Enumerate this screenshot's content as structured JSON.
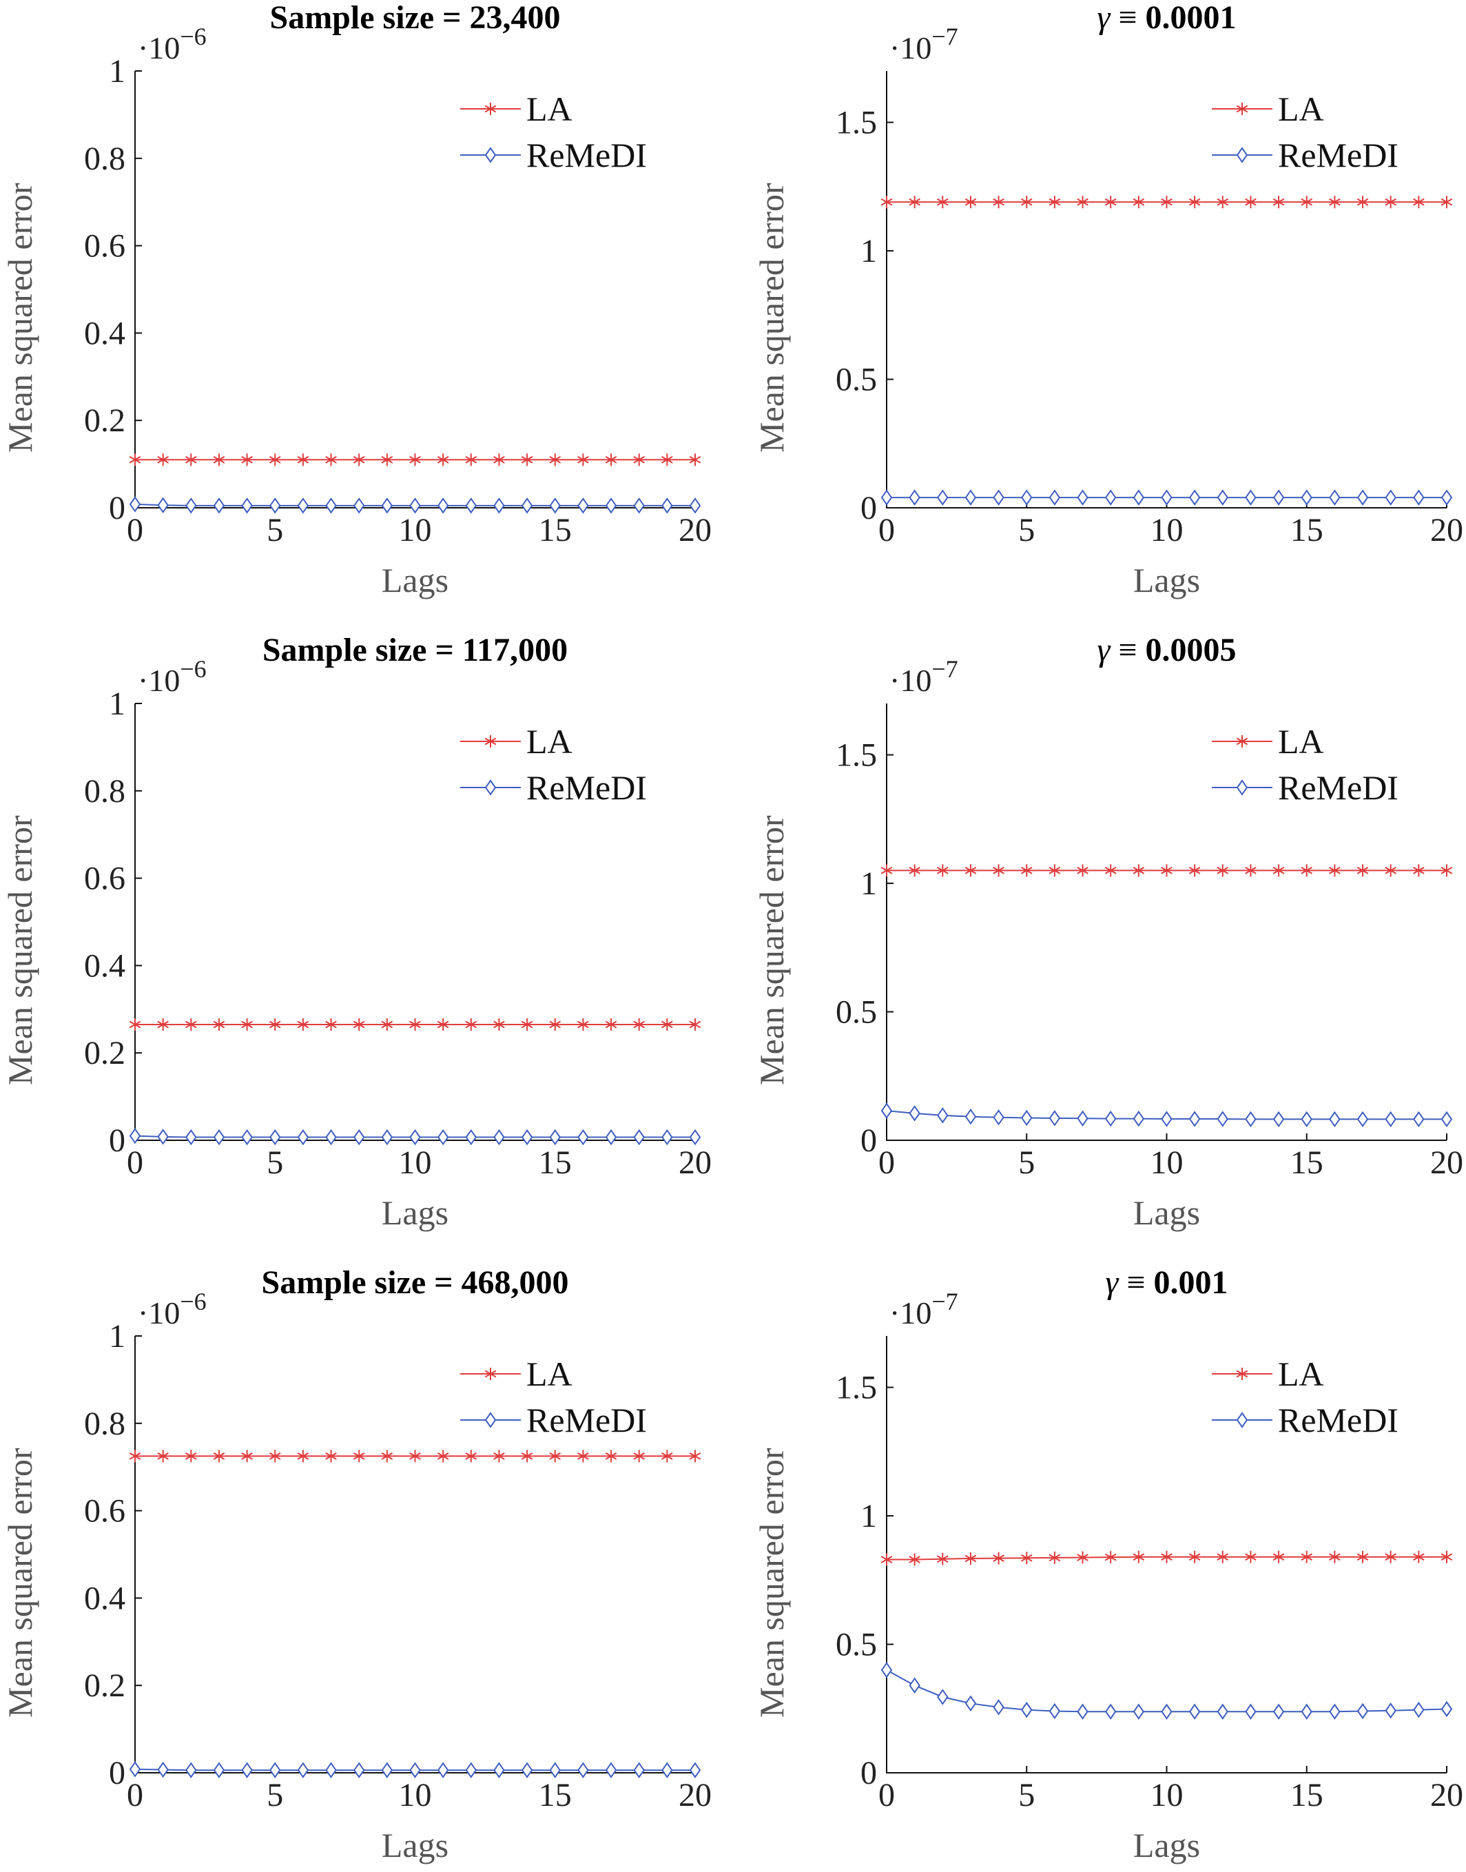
{
  "chart_data": [
    {
      "type": "line",
      "title": "Sample size = 23,400",
      "title_parts": [
        {
          "text": "Sample size = 23,400",
          "italic": false
        }
      ],
      "xlabel": "Lags",
      "ylabel": "Mean squared error",
      "scale_mult": "·10",
      "scale_exp": "−6",
      "xlim": [
        0,
        20
      ],
      "ylim": [
        0,
        1
      ],
      "xticks": [
        0,
        5,
        10,
        15,
        20
      ],
      "yticks": [
        0,
        0.2,
        0.4,
        0.6,
        0.8,
        1
      ],
      "ytick_labels": [
        "0",
        "0.2",
        "0.4",
        "0.6",
        "0.8",
        "1"
      ],
      "legend": "top-right",
      "x": [
        0,
        1,
        2,
        3,
        4,
        5,
        6,
        7,
        8,
        9,
        10,
        11,
        12,
        13,
        14,
        15,
        16,
        17,
        18,
        19,
        20
      ],
      "series": [
        {
          "name": "LA",
          "color": "#e03c3c",
          "marker": "star",
          "values": [
            0.11,
            0.11,
            0.11,
            0.11,
            0.11,
            0.11,
            0.11,
            0.11,
            0.11,
            0.11,
            0.11,
            0.11,
            0.11,
            0.11,
            0.11,
            0.11,
            0.11,
            0.11,
            0.11,
            0.11,
            0.11
          ]
        },
        {
          "name": "ReMeDI",
          "color": "#3f5fbf",
          "marker": "diamond",
          "values": [
            0.008,
            0.006,
            0.005,
            0.005,
            0.005,
            0.005,
            0.005,
            0.005,
            0.005,
            0.005,
            0.005,
            0.005,
            0.005,
            0.005,
            0.005,
            0.005,
            0.005,
            0.005,
            0.005,
            0.005,
            0.005
          ]
        }
      ]
    },
    {
      "type": "line",
      "title": "γ ≡ 0.0001",
      "title_parts": [
        {
          "text": "γ",
          "italic": true
        },
        {
          "text": " ≡ ",
          "italic": false
        },
        {
          "text": "0.0001",
          "italic": false,
          "bold": true
        }
      ],
      "xlabel": "Lags",
      "ylabel": "Mean squared error",
      "scale_mult": "·10",
      "scale_exp": "−7",
      "xlim": [
        0,
        20
      ],
      "ylim": [
        0,
        1.7
      ],
      "xticks": [
        0,
        5,
        10,
        15,
        20
      ],
      "yticks": [
        0,
        0.5,
        1,
        1.5
      ],
      "ytick_labels": [
        "0",
        "0.5",
        "1",
        "1.5"
      ],
      "legend": "top-right",
      "x": [
        0,
        1,
        2,
        3,
        4,
        5,
        6,
        7,
        8,
        9,
        10,
        11,
        12,
        13,
        14,
        15,
        16,
        17,
        18,
        19,
        20
      ],
      "series": [
        {
          "name": "LA",
          "color": "#e03c3c",
          "marker": "star",
          "values": [
            1.19,
            1.19,
            1.19,
            1.19,
            1.19,
            1.19,
            1.19,
            1.19,
            1.19,
            1.19,
            1.19,
            1.19,
            1.19,
            1.19,
            1.19,
            1.19,
            1.19,
            1.19,
            1.19,
            1.19,
            1.19
          ]
        },
        {
          "name": "ReMeDI",
          "color": "#3f5fbf",
          "marker": "diamond",
          "values": [
            0.04,
            0.04,
            0.04,
            0.04,
            0.04,
            0.04,
            0.04,
            0.04,
            0.04,
            0.04,
            0.04,
            0.04,
            0.04,
            0.04,
            0.04,
            0.04,
            0.04,
            0.04,
            0.04,
            0.04,
            0.04
          ]
        }
      ]
    },
    {
      "type": "line",
      "title": "Sample size = 117,000",
      "title_parts": [
        {
          "text": "Sample size = 117,000",
          "italic": false
        }
      ],
      "xlabel": "Lags",
      "ylabel": "Mean squared error",
      "scale_mult": "·10",
      "scale_exp": "−6",
      "xlim": [
        0,
        20
      ],
      "ylim": [
        0,
        1
      ],
      "xticks": [
        0,
        5,
        10,
        15,
        20
      ],
      "yticks": [
        0,
        0.2,
        0.4,
        0.6,
        0.8,
        1
      ],
      "ytick_labels": [
        "0",
        "0.2",
        "0.4",
        "0.6",
        "0.8",
        "1"
      ],
      "legend": "top-right",
      "x": [
        0,
        1,
        2,
        3,
        4,
        5,
        6,
        7,
        8,
        9,
        10,
        11,
        12,
        13,
        14,
        15,
        16,
        17,
        18,
        19,
        20
      ],
      "series": [
        {
          "name": "LA",
          "color": "#e03c3c",
          "marker": "star",
          "values": [
            0.265,
            0.265,
            0.265,
            0.265,
            0.265,
            0.265,
            0.265,
            0.265,
            0.265,
            0.265,
            0.265,
            0.265,
            0.265,
            0.265,
            0.265,
            0.265,
            0.265,
            0.265,
            0.265,
            0.265,
            0.265
          ]
        },
        {
          "name": "ReMeDI",
          "color": "#3f5fbf",
          "marker": "diamond",
          "values": [
            0.01,
            0.008,
            0.007,
            0.007,
            0.007,
            0.007,
            0.007,
            0.007,
            0.007,
            0.007,
            0.007,
            0.007,
            0.007,
            0.007,
            0.007,
            0.007,
            0.007,
            0.007,
            0.007,
            0.007,
            0.007
          ]
        }
      ]
    },
    {
      "type": "line",
      "title": "γ ≡ 0.0005",
      "title_parts": [
        {
          "text": "γ",
          "italic": true
        },
        {
          "text": " ≡ ",
          "italic": false
        },
        {
          "text": "0.0005",
          "italic": false,
          "bold": true
        }
      ],
      "xlabel": "Lags",
      "ylabel": "Mean squared error",
      "scale_mult": "·10",
      "scale_exp": "−7",
      "xlim": [
        0,
        20
      ],
      "ylim": [
        0,
        1.7
      ],
      "xticks": [
        0,
        5,
        10,
        15,
        20
      ],
      "yticks": [
        0,
        0.5,
        1,
        1.5
      ],
      "ytick_labels": [
        "0",
        "0.5",
        "1",
        "1.5"
      ],
      "legend": "top-right",
      "x": [
        0,
        1,
        2,
        3,
        4,
        5,
        6,
        7,
        8,
        9,
        10,
        11,
        12,
        13,
        14,
        15,
        16,
        17,
        18,
        19,
        20
      ],
      "series": [
        {
          "name": "LA",
          "color": "#e03c3c",
          "marker": "star",
          "values": [
            1.05,
            1.05,
            1.05,
            1.05,
            1.05,
            1.05,
            1.05,
            1.05,
            1.05,
            1.05,
            1.05,
            1.05,
            1.05,
            1.05,
            1.05,
            1.05,
            1.05,
            1.05,
            1.05,
            1.05,
            1.05
          ]
        },
        {
          "name": "ReMeDI",
          "color": "#3f5fbf",
          "marker": "diamond",
          "values": [
            0.115,
            0.105,
            0.097,
            0.092,
            0.089,
            0.087,
            0.086,
            0.085,
            0.084,
            0.084,
            0.083,
            0.083,
            0.083,
            0.082,
            0.082,
            0.082,
            0.082,
            0.082,
            0.082,
            0.082,
            0.082
          ]
        }
      ]
    },
    {
      "type": "line",
      "title": "Sample size = 468,000",
      "title_parts": [
        {
          "text": "Sample size = 468,000",
          "italic": false
        }
      ],
      "xlabel": "Lags",
      "ylabel": "Mean squared error",
      "scale_mult": "·10",
      "scale_exp": "−6",
      "xlim": [
        0,
        20
      ],
      "ylim": [
        0,
        1
      ],
      "xticks": [
        0,
        5,
        10,
        15,
        20
      ],
      "yticks": [
        0,
        0.2,
        0.4,
        0.6,
        0.8,
        1
      ],
      "ytick_labels": [
        "0",
        "0.2",
        "0.4",
        "0.6",
        "0.8",
        "1"
      ],
      "legend": "top-right",
      "x": [
        0,
        1,
        2,
        3,
        4,
        5,
        6,
        7,
        8,
        9,
        10,
        11,
        12,
        13,
        14,
        15,
        16,
        17,
        18,
        19,
        20
      ],
      "series": [
        {
          "name": "LA",
          "color": "#e03c3c",
          "marker": "star",
          "values": [
            0.725,
            0.725,
            0.725,
            0.725,
            0.725,
            0.725,
            0.725,
            0.725,
            0.725,
            0.725,
            0.725,
            0.725,
            0.725,
            0.725,
            0.725,
            0.725,
            0.725,
            0.725,
            0.725,
            0.725,
            0.725
          ]
        },
        {
          "name": "ReMeDI",
          "color": "#3f5fbf",
          "marker": "diamond",
          "values": [
            0.008,
            0.007,
            0.006,
            0.006,
            0.006,
            0.006,
            0.006,
            0.006,
            0.006,
            0.006,
            0.006,
            0.006,
            0.006,
            0.006,
            0.006,
            0.006,
            0.006,
            0.006,
            0.006,
            0.006,
            0.006
          ]
        }
      ]
    },
    {
      "type": "line",
      "title": "γ ≡ 0.001",
      "title_parts": [
        {
          "text": "γ",
          "italic": true
        },
        {
          "text": " ≡ ",
          "italic": false
        },
        {
          "text": "0.001",
          "italic": false,
          "bold": true
        }
      ],
      "xlabel": "Lags",
      "ylabel": "Mean squared error",
      "scale_mult": "·10",
      "scale_exp": "−7",
      "xlim": [
        0,
        20
      ],
      "ylim": [
        0,
        1.7
      ],
      "xticks": [
        0,
        5,
        10,
        15,
        20
      ],
      "yticks": [
        0,
        0.5,
        1,
        1.5
      ],
      "ytick_labels": [
        "0",
        "0.5",
        "1",
        "1.5"
      ],
      "legend": "top-right",
      "x": [
        0,
        1,
        2,
        3,
        4,
        5,
        6,
        7,
        8,
        9,
        10,
        11,
        12,
        13,
        14,
        15,
        16,
        17,
        18,
        19,
        20
      ],
      "series": [
        {
          "name": "LA",
          "color": "#e03c3c",
          "marker": "star",
          "values": [
            0.83,
            0.83,
            0.832,
            0.834,
            0.835,
            0.836,
            0.837,
            0.838,
            0.839,
            0.84,
            0.84,
            0.84,
            0.84,
            0.84,
            0.84,
            0.84,
            0.84,
            0.84,
            0.84,
            0.84,
            0.84
          ]
        },
        {
          "name": "ReMeDI",
          "color": "#3f5fbf",
          "marker": "diamond",
          "values": [
            0.4,
            0.34,
            0.295,
            0.27,
            0.255,
            0.245,
            0.24,
            0.238,
            0.238,
            0.238,
            0.238,
            0.238,
            0.238,
            0.238,
            0.238,
            0.238,
            0.238,
            0.24,
            0.242,
            0.245,
            0.248
          ]
        }
      ]
    }
  ]
}
